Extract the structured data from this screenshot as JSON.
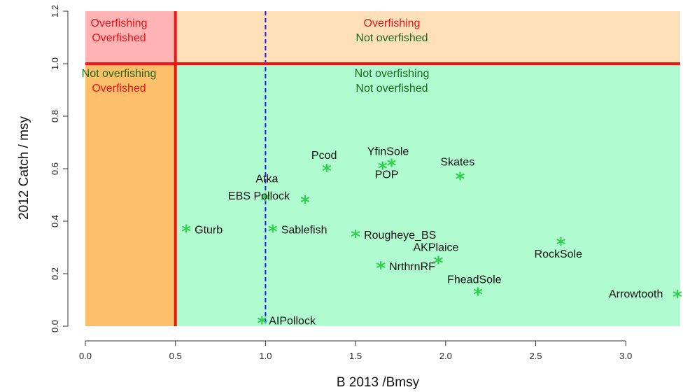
{
  "chart_data": {
    "type": "scatter",
    "xlabel": "B 2013 /Bmsy",
    "ylabel": "2012 Catch / msy",
    "xlim": [
      0,
      3.3
    ],
    "ylim": [
      0,
      1.2
    ],
    "xticks": [
      "0.0",
      "0.5",
      "1.0",
      "1.5",
      "2.0",
      "2.5",
      "3.0"
    ],
    "yticks": [
      "0.0",
      "0.2",
      "0.4",
      "0.6",
      "0.8",
      "1.0",
      "1.2"
    ],
    "reference_lines": {
      "x": 0.5,
      "y": 1.0,
      "dashed_x": 1.0
    },
    "zones": [
      {
        "name": "overfishing-overfished",
        "line1": "Overfishing",
        "line2": "Overfished",
        "color": "#ffb3b3"
      },
      {
        "name": "overfishing-not-overfished",
        "line1": "Overfishing",
        "line2": "Not overfished",
        "color": "#ffe0b8"
      },
      {
        "name": "not-overfishing-overfished",
        "line1": "Not overfishing",
        "line2": "Overfished",
        "color": "#fabf68"
      },
      {
        "name": "not-overfishing-not-overfished",
        "line1": "Not overfishing",
        "line2": "Not overfished",
        "color": "#b0fcd0"
      }
    ],
    "colors": {
      "overfishing_text": "#e8141a",
      "not_overfishing_text": "#1d6b1d",
      "reference_line": "#f01515",
      "dashed_line": "#1a1aff",
      "point": "#2ecf4a"
    },
    "points": [
      {
        "name": "Gturb",
        "x": 0.56,
        "y": 0.37
      },
      {
        "name": "Atka",
        "x": 1.0,
        "y": 0.49
      },
      {
        "name": "EBS Pollock",
        "x": 1.22,
        "y": 0.48
      },
      {
        "name": "Sablefish",
        "x": 1.04,
        "y": 0.37
      },
      {
        "name": "Pcod",
        "x": 1.34,
        "y": 0.6
      },
      {
        "name": "YfinSole",
        "x": 1.65,
        "y": 0.61
      },
      {
        "name": "POP",
        "x": 1.7,
        "y": 0.62
      },
      {
        "name": "Skates",
        "x": 2.08,
        "y": 0.57
      },
      {
        "name": "Rougheye_BS",
        "x": 1.5,
        "y": 0.35
      },
      {
        "name": "NrthrnRF",
        "x": 1.64,
        "y": 0.23
      },
      {
        "name": "AKPlaice",
        "x": 1.96,
        "y": 0.25
      },
      {
        "name": "RockSole",
        "x": 2.64,
        "y": 0.32
      },
      {
        "name": "FheadSole",
        "x": 2.18,
        "y": 0.13
      },
      {
        "name": "Arrowtooth",
        "x": 3.3,
        "y": 0.12
      },
      {
        "name": "AIPollock",
        "x": 0.98,
        "y": 0.02
      }
    ]
  }
}
